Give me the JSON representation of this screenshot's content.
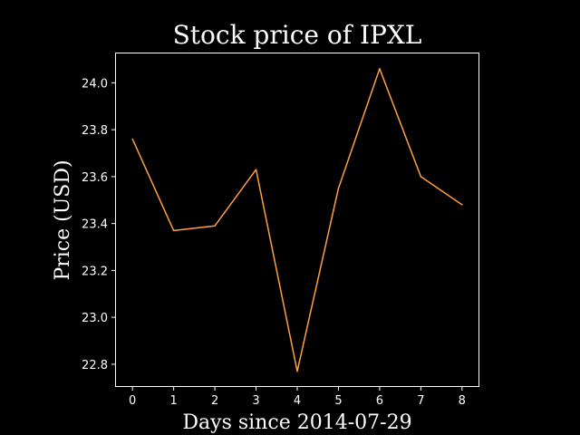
{
  "chart_data": {
    "type": "line",
    "title": "Stock price of IPXL",
    "xlabel": "Days since 2014-07-29",
    "ylabel": "Price (USD)",
    "x": [
      0,
      1,
      2,
      3,
      4,
      5,
      6,
      7,
      8
    ],
    "series": [
      {
        "values": [
          23.76,
          23.37,
          23.39,
          23.63,
          22.77,
          23.55,
          24.06,
          23.6,
          23.48
        ],
        "color": "#ff9f40"
      }
    ],
    "xlim": [
      -0.4,
      8.4
    ],
    "ylim": [
      22.707,
      24.125
    ],
    "xticks": [
      0,
      1,
      2,
      3,
      4,
      5,
      6,
      7,
      8
    ],
    "yticks": [
      "22.8",
      "23.0",
      "23.2",
      "23.4",
      "23.6",
      "23.8",
      "24.0"
    ],
    "grid": false,
    "background": "#000000",
    "foreground": "#ffffff"
  }
}
